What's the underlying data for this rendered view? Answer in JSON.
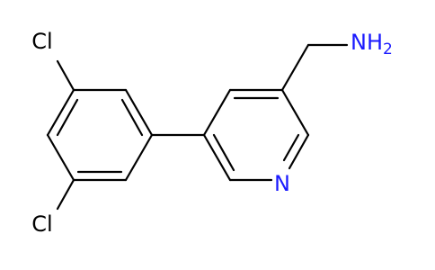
{
  "atoms": [
    {
      "label": "Cl"
    },
    {
      "label": "Cl"
    },
    {
      "label": "N"
    },
    {
      "label": "NH",
      "subscript": "2"
    }
  ]
}
